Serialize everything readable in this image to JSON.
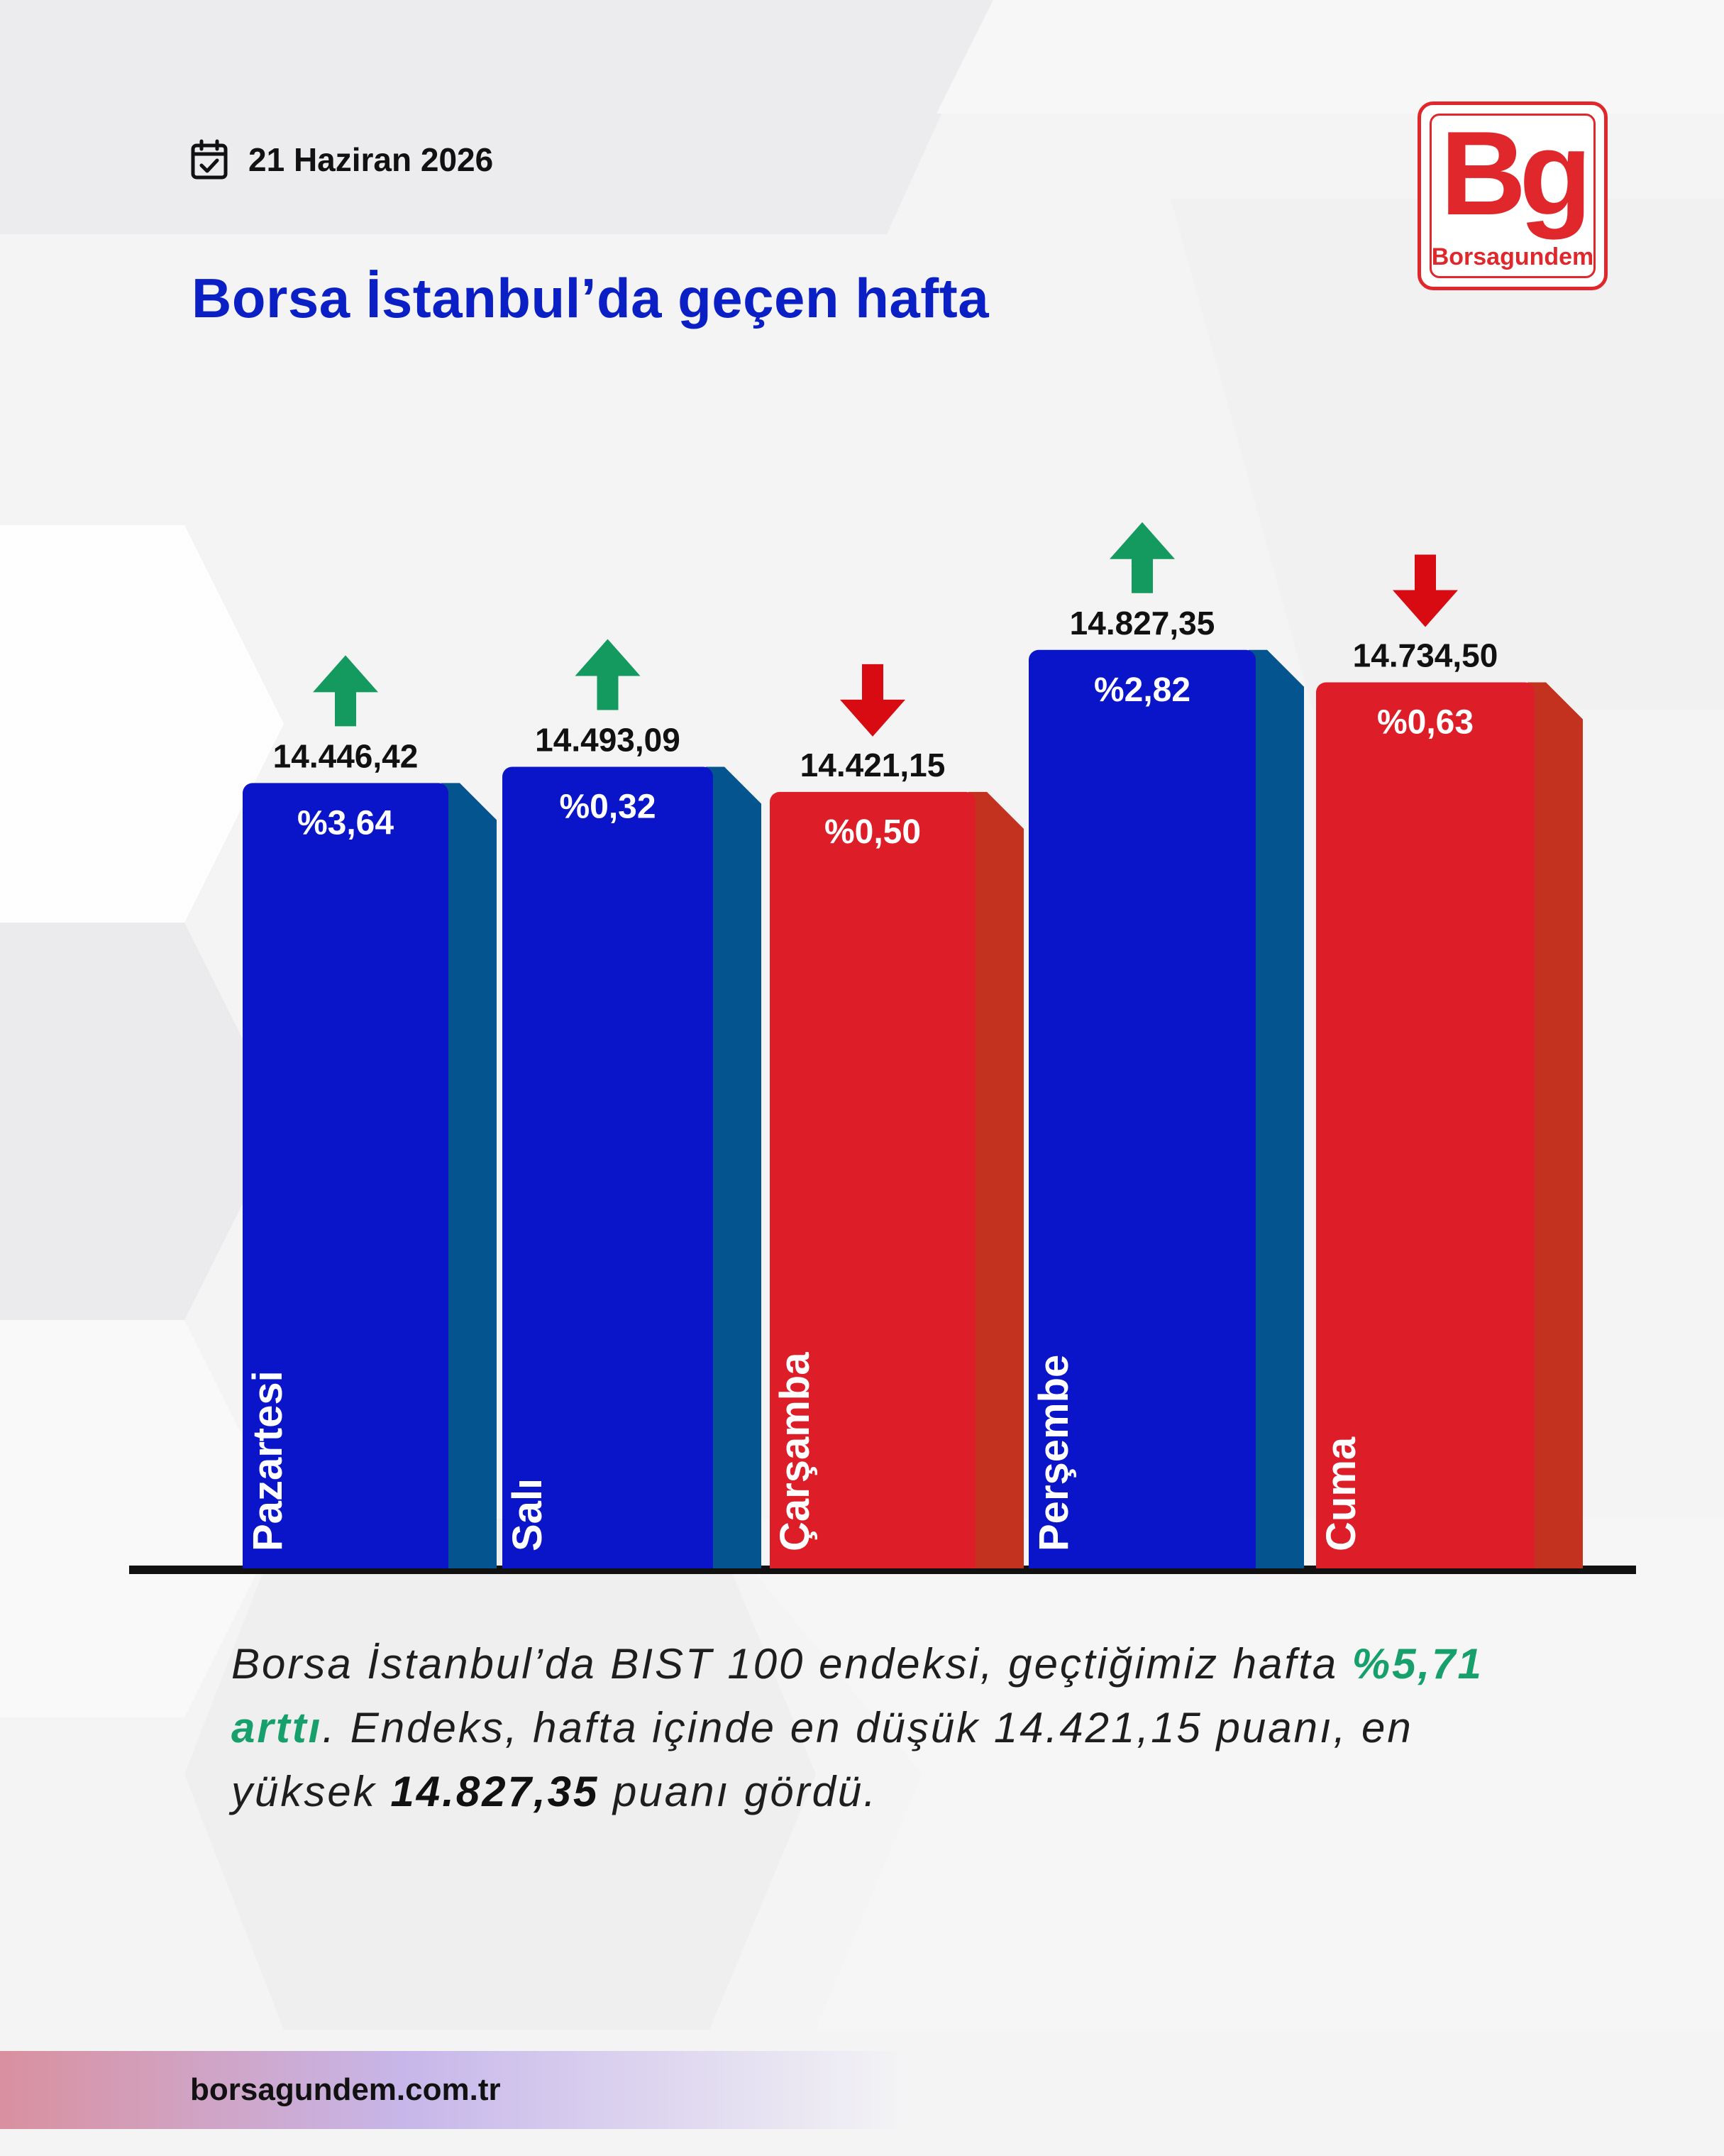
{
  "header": {
    "date": "21 Haziran 2026",
    "title": "Borsa İstanbul’da geçen hafta"
  },
  "logo": {
    "mark": "Bg",
    "name": "Borsagundem"
  },
  "chart_data": {
    "type": "bar",
    "title": "Borsa İstanbul’da geçen hafta",
    "xlabel": "",
    "ylabel": "",
    "categories": [
      "Pazartesi",
      "Salı",
      "Çarşamba",
      "Perşembe",
      "Cuma"
    ],
    "values": [
      14446.42,
      14493.09,
      14421.15,
      14827.35,
      14734.5
    ],
    "value_labels": [
      "14.446,42",
      "14.493,09",
      "14.421,15",
      "14.827,35",
      "14.734,50"
    ],
    "change_labels": [
      "%3,64",
      "%0,32",
      "%0,50",
      "%2,82",
      "%0,63"
    ],
    "directions": [
      "up",
      "up",
      "down",
      "up",
      "down"
    ],
    "ylim": [
      12200,
      14900
    ],
    "grid": false,
    "legend": "none"
  },
  "colors": {
    "up_bar": "#0a14c8",
    "up_side": "#04558f",
    "down_bar": "#dd1d27",
    "down_side": "#c2321f",
    "up_arrow": "#149a5f",
    "down_arrow": "#d90b12",
    "title": "#0a1fc4"
  },
  "description": {
    "part1": "Borsa İstanbul’da BIST 100 endeksi, geçtiğimiz hafta ",
    "highlight": "%5,71 arttı",
    "part2": ". Endeks, hafta içinde en düşük 14.421,15 puanı, en yüksek ",
    "bold": "14.827,35",
    "part3": " puanı gördü."
  },
  "footer": {
    "url": "borsagundem.com.tr"
  }
}
